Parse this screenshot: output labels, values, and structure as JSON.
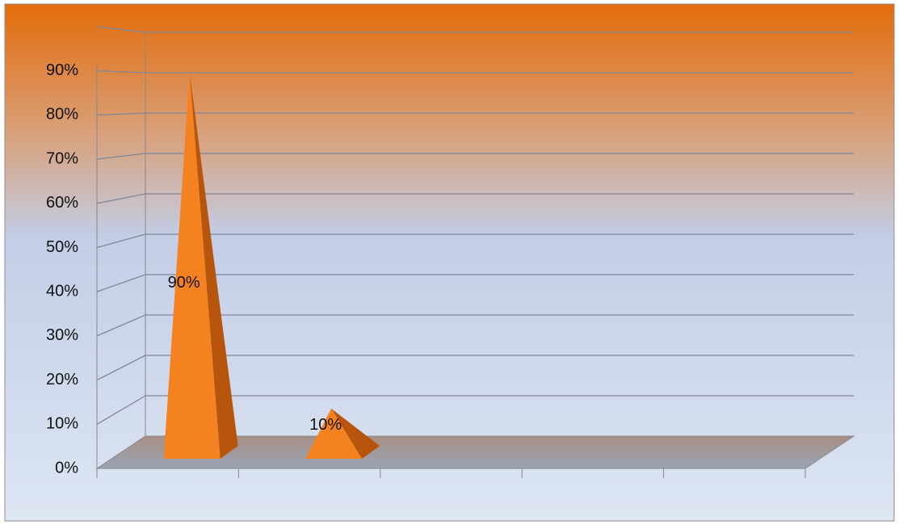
{
  "chart_data": {
    "type": "pyramid3d",
    "categories": [
      null,
      null,
      null,
      null,
      null
    ],
    "values": [
      90,
      10,
      null,
      null,
      null
    ],
    "value_labels": [
      "90%",
      "10%",
      null,
      null,
      null
    ],
    "color": "#f58220",
    "ylim": [
      0,
      100
    ],
    "yticks": [
      {
        "value": 0,
        "label": "0%"
      },
      {
        "value": 10,
        "label": "10%"
      },
      {
        "value": 20,
        "label": "20%"
      },
      {
        "value": 30,
        "label": "30%"
      },
      {
        "value": 40,
        "label": "40%"
      },
      {
        "value": 50,
        "label": "50%"
      },
      {
        "value": 60,
        "label": "60%"
      },
      {
        "value": 70,
        "label": "70%"
      },
      {
        "value": 80,
        "label": "80%"
      },
      {
        "value": 90,
        "label": "90%"
      }
    ],
    "grid": true
  }
}
